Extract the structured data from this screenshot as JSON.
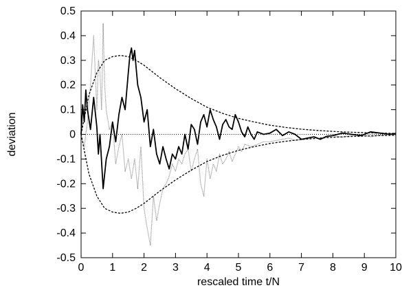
{
  "chart_data": {
    "type": "line",
    "title": "",
    "xlabel": "rescaled time t/N",
    "ylabel": "deviation",
    "xlim": [
      0,
      10
    ],
    "ylim": [
      -0.5,
      0.5
    ],
    "grid": false,
    "legend": "none",
    "x_ticks": [
      0,
      1,
      2,
      3,
      4,
      5,
      6,
      7,
      8,
      9,
      10
    ],
    "x_tick_labels": [
      "0",
      "1",
      "2",
      "3",
      "4",
      "5",
      "6",
      "7",
      "8",
      "9",
      "10"
    ],
    "y_ticks": [
      -0.5,
      -0.4,
      -0.3,
      -0.2,
      -0.1,
      0,
      0.1,
      0.2,
      0.3,
      0.4,
      0.5
    ],
    "y_tick_labels": [
      "-0.5",
      "-0.4",
      "-0.3",
      "-0.2",
      "-0.1",
      "0",
      "0.1",
      "0.2",
      "0.3",
      "0.4",
      "0.5"
    ],
    "series": [
      {
        "style": "dashed",
        "color": "#000000",
        "x": [
          0,
          0.25,
          0.5,
          0.75,
          1.0,
          1.25,
          1.5,
          1.75,
          2.0,
          2.5,
          3.0,
          3.5,
          4.0,
          4.5,
          5.0,
          5.5,
          6.0,
          6.5,
          7.0,
          7.5,
          8.0,
          8.5,
          9.0,
          9.5,
          10.0
        ],
        "y": [
          0,
          0.16,
          0.25,
          0.3,
          0.315,
          0.32,
          0.315,
          0.3,
          0.28,
          0.23,
          0.185,
          0.145,
          0.11,
          0.085,
          0.065,
          0.05,
          0.037,
          0.028,
          0.021,
          0.016,
          0.012,
          0.009,
          0.007,
          0.005,
          0.004
        ]
      },
      {
        "style": "dashed",
        "color": "#000000",
        "x": [
          0,
          0.25,
          0.5,
          0.75,
          1.0,
          1.25,
          1.5,
          1.75,
          2.0,
          2.5,
          3.0,
          3.5,
          4.0,
          4.5,
          5.0,
          5.5,
          6.0,
          6.5,
          7.0,
          7.5,
          8.0,
          8.5,
          9.0,
          9.5,
          10.0
        ],
        "y": [
          0,
          -0.16,
          -0.25,
          -0.3,
          -0.315,
          -0.32,
          -0.315,
          -0.3,
          -0.28,
          -0.23,
          -0.185,
          -0.145,
          -0.11,
          -0.085,
          -0.065,
          -0.05,
          -0.037,
          -0.028,
          -0.021,
          -0.016,
          -0.012,
          -0.009,
          -0.007,
          -0.005,
          -0.004
        ]
      },
      {
        "style": "dotted-zero",
        "color": "#000000",
        "x": [
          0,
          10
        ],
        "y": [
          0,
          0
        ]
      },
      {
        "style": "solid-thick",
        "color": "#000000",
        "x": [
          0,
          0.05,
          0.1,
          0.15,
          0.2,
          0.3,
          0.4,
          0.5,
          0.55,
          0.6,
          0.7,
          0.8,
          0.9,
          1.0,
          1.1,
          1.2,
          1.3,
          1.4,
          1.5,
          1.55,
          1.6,
          1.65,
          1.7,
          1.75,
          1.8,
          1.9,
          2.0,
          2.1,
          2.2,
          2.3,
          2.4,
          2.5,
          2.6,
          2.7,
          2.8,
          2.9,
          3.0,
          3.1,
          3.2,
          3.3,
          3.4,
          3.5,
          3.6,
          3.7,
          3.8,
          3.9,
          4.0,
          4.1,
          4.2,
          4.3,
          4.4,
          4.5,
          4.6,
          4.7,
          4.8,
          4.9,
          5.0,
          5.1,
          5.2,
          5.3,
          5.4,
          5.5,
          5.6,
          5.8,
          6.0,
          6.2,
          6.4,
          6.6,
          6.8,
          7.0,
          7.2,
          7.4,
          7.6,
          7.8,
          8.0,
          8.3,
          8.6,
          8.9,
          9.2,
          9.5,
          9.8,
          10.0
        ],
        "y": [
          0.0,
          0.12,
          0.05,
          0.18,
          0.1,
          0.02,
          0.15,
          0.03,
          -0.08,
          0.0,
          -0.22,
          -0.1,
          -0.05,
          0.05,
          -0.03,
          0.08,
          0.15,
          0.1,
          0.25,
          0.32,
          0.35,
          0.3,
          0.34,
          0.27,
          0.2,
          0.15,
          0.05,
          0.1,
          -0.05,
          0.02,
          -0.08,
          -0.12,
          -0.05,
          -0.1,
          -0.14,
          -0.08,
          -0.1,
          -0.05,
          -0.08,
          0.0,
          -0.06,
          0.04,
          0.02,
          -0.04,
          0.05,
          0.08,
          0.03,
          0.1,
          0.06,
          0.03,
          -0.02,
          0.04,
          0.06,
          0.03,
          0.02,
          0.08,
          0.05,
          0.01,
          -0.01,
          0.03,
          0.0,
          -0.02,
          0.01,
          0.0,
          0.005,
          0.02,
          -0.005,
          0.01,
          0.0,
          -0.02,
          -0.015,
          -0.01,
          -0.02,
          -0.008,
          -0.005,
          0.005,
          0.0,
          -0.005,
          0.01,
          0.005,
          0.0,
          0.004
        ]
      },
      {
        "style": "dotted-gray",
        "color": "#888888",
        "x": [
          0,
          0.1,
          0.2,
          0.3,
          0.4,
          0.5,
          0.55,
          0.6,
          0.65,
          0.7,
          0.75,
          0.8,
          0.9,
          1.0,
          1.1,
          1.2,
          1.3,
          1.4,
          1.5,
          1.6,
          1.7,
          1.8,
          1.9,
          2.0,
          2.1,
          2.2,
          2.3,
          2.4,
          2.5,
          2.6,
          2.7,
          2.8,
          2.9,
          3.0,
          3.1,
          3.2,
          3.3,
          3.4,
          3.5,
          3.6,
          3.7,
          3.8,
          3.9,
          4.0,
          4.1,
          4.2,
          4.3,
          4.4,
          4.5,
          4.6,
          4.7,
          4.8,
          4.9,
          5.0,
          5.1,
          5.2,
          5.4,
          5.6,
          5.8,
          6.0,
          6.2,
          6.4,
          6.6,
          6.8,
          7.0,
          7.2,
          7.4,
          7.6,
          7.8,
          8.0,
          8.3,
          8.6,
          8.9,
          9.2,
          9.5,
          9.8,
          10.0
        ],
        "y": [
          0.0,
          -0.05,
          0.05,
          0.2,
          0.4,
          0.1,
          0.3,
          0.25,
          0.1,
          0.45,
          0.2,
          0.1,
          0.02,
          0.05,
          -0.12,
          -0.05,
          0.0,
          -0.15,
          -0.1,
          -0.18,
          -0.1,
          -0.22,
          -0.05,
          -0.3,
          -0.38,
          -0.45,
          -0.25,
          -0.35,
          -0.28,
          -0.22,
          -0.2,
          -0.17,
          -0.12,
          -0.15,
          -0.1,
          -0.12,
          -0.08,
          -0.06,
          -0.15,
          -0.1,
          -0.06,
          -0.2,
          -0.25,
          -0.1,
          -0.18,
          -0.12,
          -0.15,
          -0.08,
          -0.12,
          -0.1,
          -0.07,
          -0.11,
          -0.08,
          -0.05,
          -0.07,
          -0.04,
          -0.05,
          -0.04,
          -0.03,
          -0.03,
          -0.025,
          -0.02,
          -0.015,
          -0.025,
          -0.02,
          -0.015,
          -0.01,
          -0.02,
          -0.01,
          -0.005,
          -0.012,
          -0.004,
          0.0,
          -0.01,
          -0.003,
          0.0,
          -0.002
        ]
      }
    ]
  }
}
